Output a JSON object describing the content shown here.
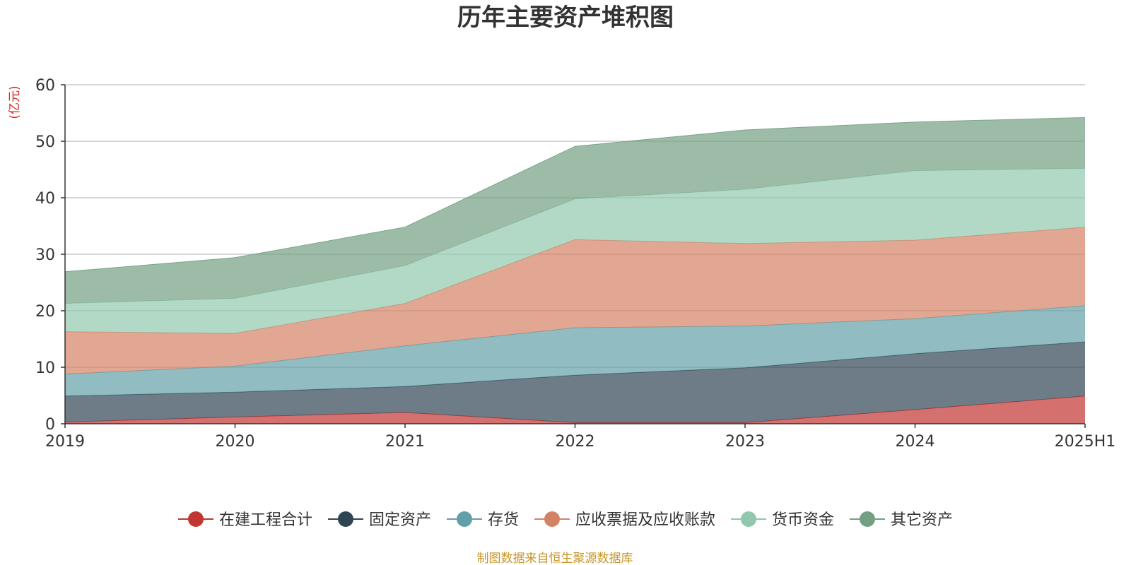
{
  "chart_data": {
    "type": "area",
    "stacked": true,
    "title": "历年主要资产堆积图",
    "ylabel": "(亿元)",
    "xlabel": "",
    "ylim": [
      0,
      60
    ],
    "yticks": [
      0,
      10,
      20,
      30,
      40,
      50,
      60
    ],
    "categories": [
      "2019",
      "2020",
      "2021",
      "2022",
      "2023",
      "2024",
      "2025H1"
    ],
    "grid": true,
    "legend_position": "bottom",
    "series": [
      {
        "name": "在建工程合计",
        "color": "#c23531",
        "values": [
          0.3,
          1.2,
          2.0,
          0.2,
          0.2,
          2.5,
          4.9
        ]
      },
      {
        "name": "固定资产",
        "color": "#2f4554",
        "values": [
          4.6,
          4.4,
          4.6,
          8.4,
          9.7,
          9.9,
          9.6
        ]
      },
      {
        "name": "存货",
        "color": "#61a0a8",
        "values": [
          3.9,
          4.6,
          7.2,
          8.4,
          7.4,
          6.2,
          6.4
        ]
      },
      {
        "name": "应收票据及应收账款",
        "color": "#d48265",
        "values": [
          7.5,
          5.8,
          7.5,
          15.6,
          14.6,
          13.9,
          13.9
        ]
      },
      {
        "name": "货币资金",
        "color": "#91c7ae",
        "values": [
          5.0,
          6.2,
          6.7,
          7.2,
          9.6,
          12.3,
          10.4
        ]
      },
      {
        "name": "其它资产",
        "color": "#749f83",
        "values": [
          5.6,
          7.2,
          6.8,
          9.3,
          10.5,
          8.6,
          9.0
        ]
      }
    ]
  },
  "source_note": "制图数据来自恒生聚源数据库"
}
